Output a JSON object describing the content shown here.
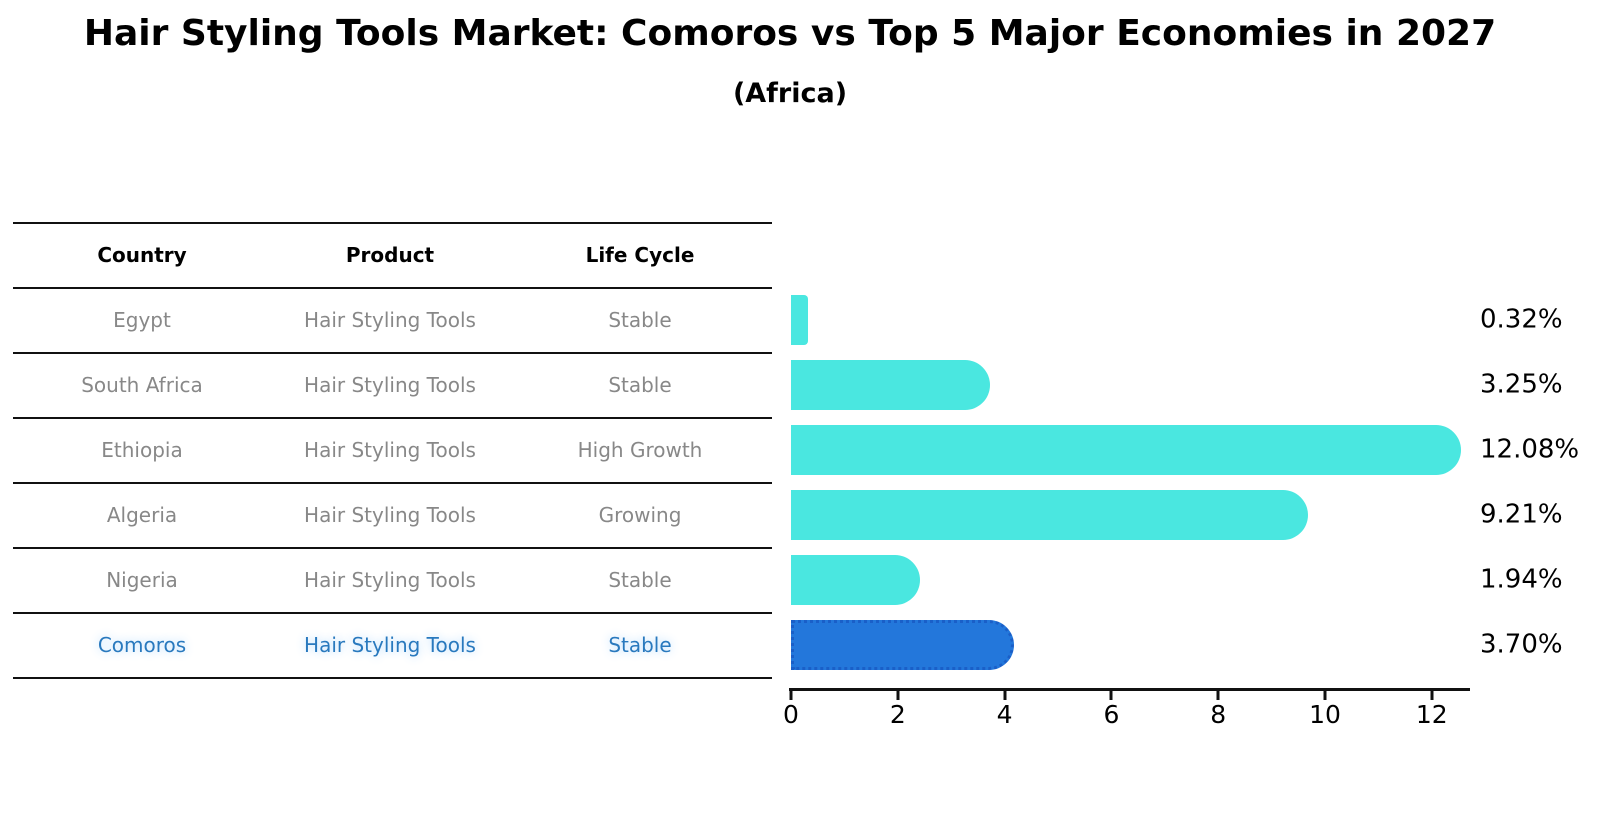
{
  "title": "Hair Styling Tools Market: Comoros vs Top 5 Major Economies in 2027",
  "subtitle": "(Africa)",
  "table": {
    "headers": [
      "Country",
      "Product",
      "Life Cycle"
    ],
    "rows": [
      {
        "country": "Egypt",
        "product": "Hair Styling Tools",
        "life_cycle": "Stable",
        "highlighted": false
      },
      {
        "country": "South Africa",
        "product": "Hair Styling Tools",
        "life_cycle": "Stable",
        "highlighted": false
      },
      {
        "country": "Ethiopia",
        "product": "Hair Styling Tools",
        "life_cycle": "High Growth",
        "highlighted": false
      },
      {
        "country": "Algeria",
        "product": "Hair Styling Tools",
        "life_cycle": "Growing",
        "highlighted": false
      },
      {
        "country": "Nigeria",
        "product": "Hair Styling Tools",
        "life_cycle": "Stable",
        "highlighted": false
      },
      {
        "country": "Comoros",
        "product": "Hair Styling Tools",
        "life_cycle": "Stable",
        "highlighted": true
      }
    ]
  },
  "chart_data": {
    "type": "bar",
    "orientation": "horizontal",
    "title": "Hair Styling Tools Market: Comoros vs Top 5 Major Economies in 2027 (Africa)",
    "categories": [
      "Egypt",
      "South Africa",
      "Ethiopia",
      "Algeria",
      "Nigeria",
      "Comoros"
    ],
    "values": [
      0.32,
      3.25,
      12.08,
      9.21,
      1.94,
      3.7
    ],
    "value_labels": [
      "0.32%",
      "3.25%",
      "12.08%",
      "9.21%",
      "1.94%",
      "3.70%"
    ],
    "x_ticks": [
      0,
      2,
      4,
      6,
      8,
      10,
      12
    ],
    "xlim": [
      0,
      12.7
    ],
    "grid": false,
    "legend": "none",
    "bar_color": "#4AE7E0",
    "highlight_bar_color": "#2377DB",
    "highlight_border_color": "#1A5FC8",
    "highlight_index": 5,
    "highlight_category": "Comoros"
  },
  "colors": {
    "muted_text": "#888888",
    "highlight_text": "#2979BE",
    "axis": "#111111"
  }
}
